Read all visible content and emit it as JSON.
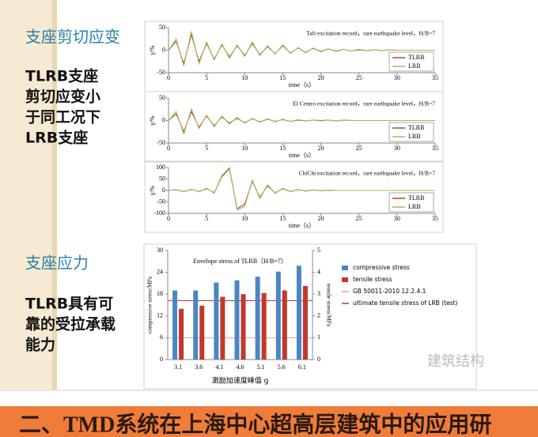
{
  "slide": {
    "sections": [
      {
        "heading": "支座剪切应变",
        "lines": [
          "TLRB支座",
          "剪切应变小",
          "于同工况下",
          "LRB支座"
        ]
      },
      {
        "heading": "支座应力",
        "lines": [
          "TLRB具有可",
          "靠的受拉承载",
          "能力"
        ]
      }
    ],
    "watermark": "建筑结构",
    "banner": "二、TMD系统在上海中心超高层建筑中的应用研"
  },
  "chart_data": [
    {
      "type": "line",
      "title": "Taft excitation record，rare earthquake level，H/B=7",
      "x_label": "time（s）",
      "y_label": "γ/%",
      "x": [
        0,
        1,
        2,
        3,
        4,
        5,
        6,
        7,
        8,
        9,
        10,
        11,
        12,
        13,
        14,
        15,
        16,
        17,
        18,
        19,
        20,
        21,
        22,
        23,
        24,
        25,
        26,
        27,
        28,
        29,
        30,
        31,
        32,
        33,
        34,
        35
      ],
      "xlim": [
        0,
        35
      ],
      "xticks": [
        0,
        5,
        10,
        15,
        20,
        25,
        30,
        35
      ],
      "ylim": [
        -50,
        50
      ],
      "yticks": [
        -50,
        0,
        50
      ],
      "series": [
        {
          "name": "TLRB",
          "color": "#b0413e",
          "values": [
            0,
            20,
            -30,
            35,
            -25,
            15,
            -20,
            12,
            -15,
            10,
            -12,
            15,
            -10,
            8,
            -8,
            10,
            -6,
            5,
            -5,
            4,
            -3,
            3,
            -2,
            2,
            -2,
            1,
            -1,
            1,
            -1,
            1,
            0,
            0,
            0,
            0,
            0,
            0
          ]
        },
        {
          "name": "LRB",
          "color": "#a8b85a",
          "values": [
            0,
            25,
            -35,
            42,
            -30,
            18,
            -22,
            14,
            -18,
            12,
            -14,
            18,
            -12,
            10,
            -9,
            12,
            -7,
            6,
            -6,
            5,
            -4,
            3,
            -3,
            2,
            -2,
            2,
            -1,
            1,
            -1,
            1,
            0,
            0,
            0,
            0,
            0,
            0
          ]
        }
      ]
    },
    {
      "type": "line",
      "title": "El Centro excitation record，rare earthquake level，H/B=7",
      "x_label": "time（s）",
      "y_label": "γ/%",
      "x": [
        0,
        1,
        2,
        3,
        4,
        5,
        6,
        7,
        8,
        9,
        10,
        11,
        12,
        13,
        14,
        15,
        16,
        17,
        18,
        19,
        20,
        21,
        22,
        23,
        24,
        25,
        26,
        27,
        28,
        29,
        30,
        31,
        32,
        33,
        34,
        35
      ],
      "xlim": [
        0,
        35
      ],
      "xticks": [
        0,
        5,
        10,
        15,
        20,
        25,
        30,
        35
      ],
      "ylim": [
        -50,
        50
      ],
      "yticks": [
        -50,
        0,
        50
      ],
      "series": [
        {
          "name": "TLRB",
          "color": "#b0413e",
          "values": [
            0,
            15,
            -25,
            20,
            -15,
            10,
            -12,
            8,
            -6,
            5,
            -5,
            4,
            -3,
            3,
            -2,
            2,
            -2,
            1,
            -1,
            1,
            0,
            1,
            -1,
            1,
            0,
            0,
            0,
            0,
            0,
            0,
            0,
            0,
            0,
            0,
            0,
            0
          ]
        },
        {
          "name": "LRB",
          "color": "#a8b85a",
          "values": [
            0,
            20,
            -30,
            26,
            -18,
            12,
            -14,
            10,
            -8,
            7,
            -6,
            5,
            -4,
            4,
            -3,
            3,
            -2,
            2,
            -1,
            1,
            -1,
            1,
            -1,
            1,
            0,
            0,
            0,
            0,
            0,
            0,
            0,
            0,
            0,
            0,
            0,
            0
          ]
        }
      ]
    },
    {
      "type": "line",
      "title": "ChiChi excitation record，rare earthquake level，H/B=7",
      "x_label": "time（s）",
      "y_label": "γ/%",
      "x": [
        0,
        1,
        2,
        3,
        4,
        5,
        6,
        7,
        8,
        9,
        10,
        11,
        12,
        13,
        14,
        15,
        16,
        17,
        18,
        19,
        20,
        21,
        22,
        23,
        24,
        25,
        26,
        27,
        28,
        29,
        30,
        31,
        32,
        33,
        34,
        35
      ],
      "xlim": [
        0,
        35
      ],
      "xticks": [
        0,
        5,
        10,
        15,
        20,
        25,
        30,
        35
      ],
      "ylim": [
        -100,
        100
      ],
      "yticks": [
        -100,
        -50,
        0,
        50,
        100
      ],
      "series": [
        {
          "name": "TLRB",
          "color": "#b0413e",
          "values": [
            0,
            3,
            -5,
            5,
            -5,
            8,
            -10,
            60,
            95,
            -80,
            -60,
            40,
            -30,
            20,
            -10,
            8,
            -5,
            3,
            -2,
            2,
            -1,
            1,
            0,
            0,
            0,
            0,
            0,
            0,
            0,
            0,
            0,
            0,
            0,
            0,
            0,
            0
          ]
        },
        {
          "name": "LRB",
          "color": "#a8b85a",
          "values": [
            0,
            4,
            -6,
            6,
            -6,
            10,
            -12,
            65,
            100,
            -85,
            -70,
            45,
            -35,
            25,
            -12,
            10,
            -6,
            4,
            -3,
            2,
            -1,
            1,
            0,
            0,
            0,
            0,
            0,
            0,
            0,
            0,
            0,
            0,
            0,
            0,
            0,
            0
          ]
        }
      ]
    },
    {
      "type": "bar",
      "title": "Envelope stress of TLRB（H/B=7）",
      "x_label": "激励加速度峰值 g",
      "y_label": "compressive stress/MPa",
      "y2_label": "tensile stress/MPa",
      "categories": [
        "3.1",
        "3.6",
        "4.1",
        "4.6",
        "5.1",
        "5.6",
        "6.1"
      ],
      "ylim": [
        0,
        30
      ],
      "yticks": [
        0,
        6,
        12,
        18,
        24,
        30
      ],
      "y2lim": [
        0,
        5
      ],
      "y2ticks": [
        0,
        1,
        2,
        3,
        4,
        5
      ],
      "series": [
        {
          "name": "compressive stress",
          "color": "#4a86c5",
          "values": [
            19,
            19,
            21.2,
            21.8,
            22.8,
            24.2,
            25.8
          ]
        },
        {
          "name": "tensile stress",
          "color": "#c0392b",
          "axis": "y2",
          "values": [
            2.33,
            2.47,
            2.88,
            3.0,
            3.05,
            3.17,
            3.37
          ]
        }
      ],
      "reference_lines": [
        {
          "name": "GB 50011-2010 12.2.4.1",
          "color": "#e89a94",
          "axis": "y2",
          "value": 1
        },
        {
          "name": "ultimate tensile stress of LRB (test)",
          "color": "#c0392b",
          "axis": "y2",
          "value": 2.7
        }
      ]
    }
  ]
}
